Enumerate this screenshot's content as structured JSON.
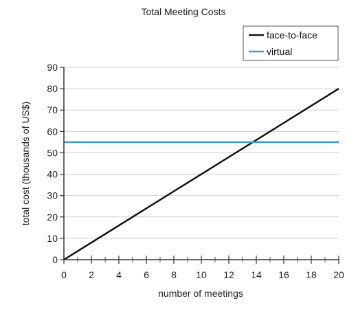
{
  "chart_data": {
    "type": "line",
    "title": "Total Meeting Costs",
    "xlabel": "number of meetings",
    "ylabel": "total cost (thousands of US$)",
    "xlim": [
      0,
      20
    ],
    "ylim": [
      0,
      90
    ],
    "xticks": [
      0,
      2,
      4,
      6,
      8,
      10,
      12,
      14,
      16,
      18,
      20
    ],
    "yticks": [
      0,
      10,
      20,
      30,
      40,
      50,
      60,
      70,
      80,
      90
    ],
    "grid": "horizontal",
    "legend_position": "top-right",
    "series": [
      {
        "name": "face-to-face",
        "color": "#111111",
        "x": [
          0,
          20
        ],
        "y": [
          0,
          80
        ]
      },
      {
        "name": "virtual",
        "color": "#3a9bd5",
        "x": [
          0,
          20
        ],
        "y": [
          55,
          55
        ]
      }
    ]
  }
}
